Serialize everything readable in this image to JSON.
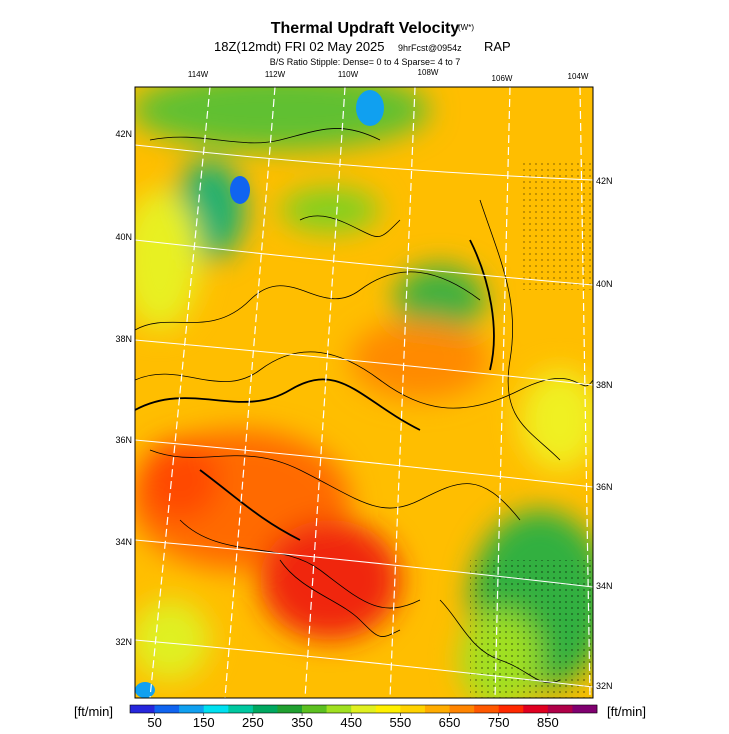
{
  "map": {
    "title": "Thermal Updraft Velocity",
    "title_symbol": "(W*)",
    "subtitle": "18Z(12mdt) FRI 02 May 2025",
    "forecast": "9hrFcst@0954z",
    "model": "RAP",
    "stipple_note": "B/S Ratio Stipple:  Dense= 0 to 4  Sparse= 4 to 7",
    "lon_labels": [
      "114W",
      "112W",
      "110W",
      "108W",
      "106W",
      "104W"
    ],
    "lat_labels_left": [
      "42N",
      "40N",
      "38N",
      "36N",
      "34N",
      "32N"
    ],
    "lat_labels_right": [
      "42N",
      "40N",
      "38N",
      "36N",
      "34N",
      "32N"
    ],
    "colorbar": {
      "unit_left": "[ft/min]",
      "unit_right": "[ft/min]",
      "range": [
        0,
        950
      ],
      "ticks": [
        50,
        150,
        250,
        350,
        450,
        550,
        650,
        750,
        850
      ],
      "colors": [
        "#2626dc",
        "#1064f0",
        "#10a0f0",
        "#00e0f0",
        "#00c8a0",
        "#00a860",
        "#20a030",
        "#5cc020",
        "#a0e020",
        "#e0f020",
        "#fff000",
        "#ffd200",
        "#ffac00",
        "#ff8400",
        "#ff5800",
        "#ff2800",
        "#e00020",
        "#b00048",
        "#800070"
      ]
    }
  }
}
